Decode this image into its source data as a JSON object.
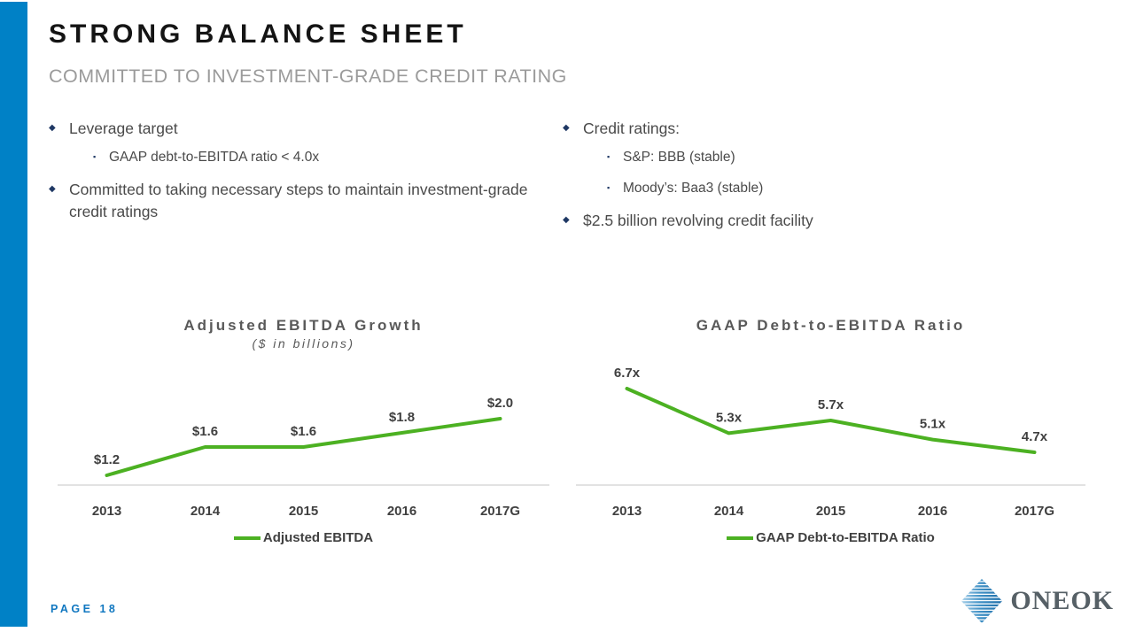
{
  "slide": {
    "title": "STRONG BALANCE SHEET",
    "subtitle": "COMMITTED TO INVESTMENT-GRADE CREDIT RATING",
    "page_label": "PAGE 18",
    "logo_text": "ONEOK",
    "accent_blue": "#0081c6",
    "accent_green": "#4cb122",
    "bullet_marker_navy": "#1f3864"
  },
  "bullets": {
    "left": [
      {
        "level": 1,
        "text": "Leverage target"
      },
      {
        "level": 2,
        "text": "GAAP debt-to-EBITDA ratio < 4.0x"
      },
      {
        "level": 1,
        "text": "Committed to taking necessary steps to maintain investment-grade credit ratings"
      }
    ],
    "right": [
      {
        "level": 1,
        "text": "Credit ratings:"
      },
      {
        "level": 2,
        "text": "S&P: BBB (stable)"
      },
      {
        "level": 2,
        "text": "Moody’s: Baa3 (stable)"
      },
      {
        "level": 1,
        "text": "$2.5 billion revolving credit facility"
      }
    ]
  },
  "chart_data": [
    {
      "type": "line",
      "title": "Adjusted EBITDA Growth",
      "subtitle": "($ in billions)",
      "categories": [
        "2013",
        "2014",
        "2015",
        "2016",
        "2017G"
      ],
      "series": [
        {
          "name": "Adjusted EBITDA",
          "values": [
            1.2,
            1.6,
            1.6,
            1.8,
            2.0
          ],
          "point_labels": [
            "$1.2",
            "$1.6",
            "$1.6",
            "$1.8",
            "$2.0"
          ]
        }
      ],
      "legend": "Adjusted EBITDA",
      "legend_position": "bottom",
      "grid": false,
      "line_color": "#4cb122",
      "ylim": [
        1.0,
        2.3
      ]
    },
    {
      "type": "line",
      "title": "GAAP Debt-to-EBITDA Ratio",
      "subtitle": "",
      "categories": [
        "2013",
        "2014",
        "2015",
        "2016",
        "2017G"
      ],
      "series": [
        {
          "name": "GAAP Debt-to-EBITDA Ratio",
          "values": [
            6.7,
            5.3,
            5.7,
            5.1,
            4.7
          ],
          "point_labels": [
            "6.7x",
            "5.3x",
            "5.7x",
            "5.1x",
            "4.7x"
          ]
        }
      ],
      "legend": "GAAP Debt-to-EBITDA Ratio",
      "legend_position": "bottom",
      "grid": false,
      "line_color": "#4cb122",
      "ylim": [
        3.7,
        7.0
      ]
    }
  ]
}
